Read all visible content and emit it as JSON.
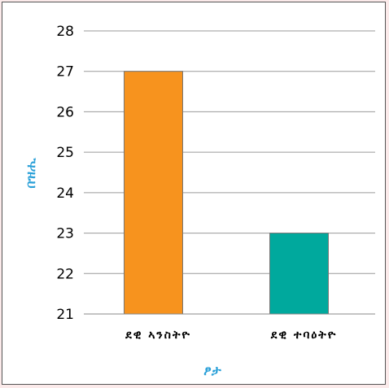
{
  "chart_data": {
    "type": "bar",
    "categories": [
      "ደዊ ኣንስትዮ",
      "ደዊ ተባዕትዮ"
    ],
    "values": [
      27,
      23
    ],
    "bar_colors": [
      "#f7931e",
      "#00a99d"
    ],
    "xlabel": "ፆታ",
    "ylabel": "በዝሒ",
    "ylim": [
      21,
      28
    ],
    "yticks": [
      21,
      22,
      23,
      24,
      25,
      26,
      27,
      28
    ],
    "grid": true,
    "legend": "none"
  }
}
